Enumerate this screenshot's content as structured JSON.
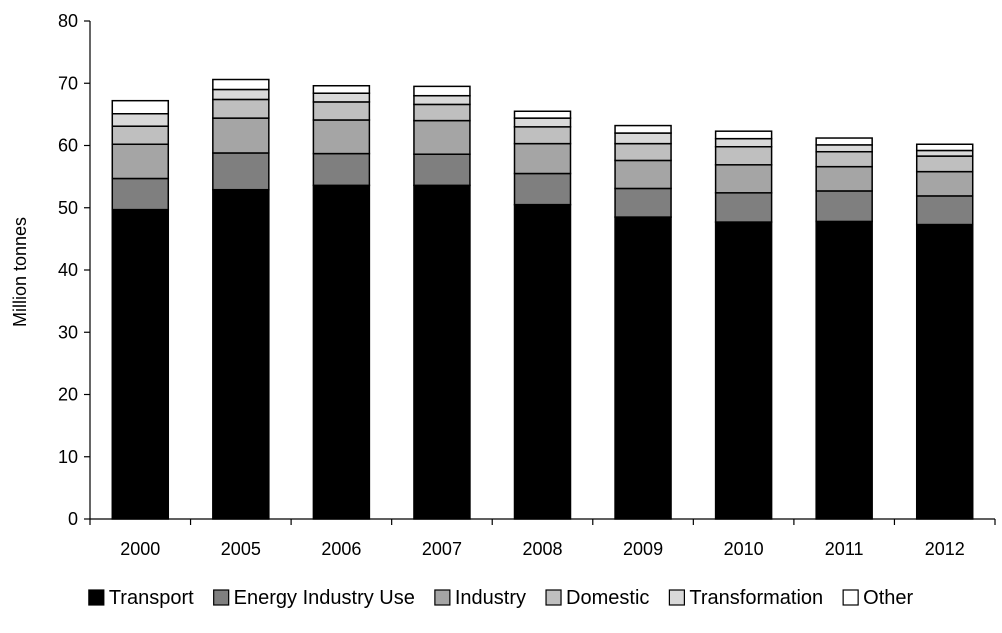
{
  "chart_data": {
    "type": "bar",
    "stacked": true,
    "title": "",
    "xlabel": "",
    "ylabel": "Million tonnes",
    "ylim": [
      0,
      80
    ],
    "yticks": [
      0,
      10,
      20,
      30,
      40,
      50,
      60,
      70,
      80
    ],
    "grid": false,
    "legend_position": "bottom",
    "categories": [
      "2000",
      "2005",
      "2006",
      "2007",
      "2008",
      "2009",
      "2010",
      "2011",
      "2012"
    ],
    "series": [
      {
        "name": "Transport",
        "color": "#000000",
        "values": [
          49.7,
          52.9,
          53.6,
          53.6,
          50.5,
          48.5,
          47.7,
          47.8,
          47.3
        ]
      },
      {
        "name": "Energy Industry Use",
        "color": "#7f7f7f",
        "values": [
          5.0,
          5.9,
          5.1,
          5.0,
          5.0,
          4.6,
          4.7,
          4.9,
          4.6
        ]
      },
      {
        "name": "Industry",
        "color": "#a5a5a5",
        "values": [
          5.5,
          5.6,
          5.4,
          5.4,
          4.8,
          4.5,
          4.5,
          3.9,
          3.9
        ]
      },
      {
        "name": "Domestic",
        "color": "#bfbfbf",
        "values": [
          2.9,
          3.0,
          2.9,
          2.6,
          2.7,
          2.7,
          2.9,
          2.4,
          2.5
        ]
      },
      {
        "name": "Transformation",
        "color": "#d9d9d9",
        "values": [
          2.0,
          1.6,
          1.4,
          1.4,
          1.4,
          1.7,
          1.3,
          1.1,
          0.9
        ]
      },
      {
        "name": "Other",
        "color": "#ffffff",
        "values": [
          2.1,
          1.6,
          1.2,
          1.5,
          1.1,
          1.2,
          1.2,
          1.1,
          1.0
        ]
      }
    ]
  }
}
